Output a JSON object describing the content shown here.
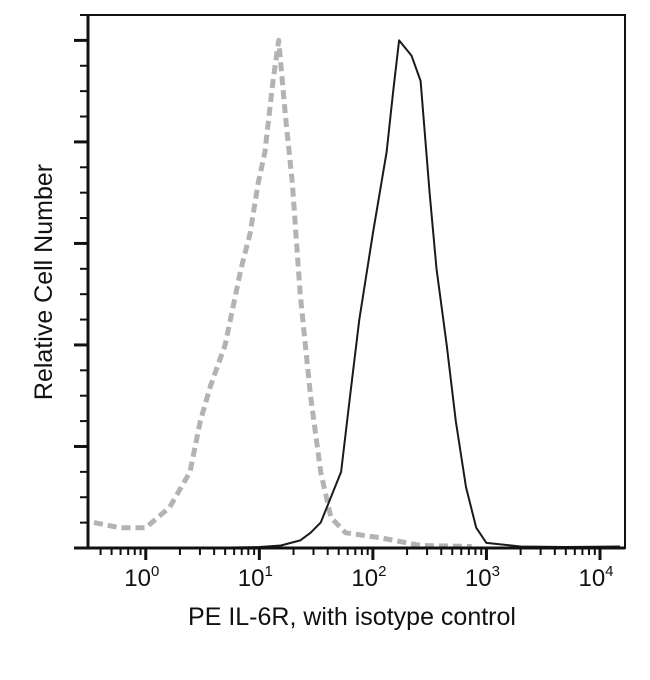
{
  "chart_data": {
    "type": "line",
    "title": "",
    "xlabel": "PE IL-6R, with isotype control",
    "ylabel": "Relative Cell Number",
    "x_scale": "log",
    "xlim": [
      0.31,
      16600
    ],
    "ylim": [
      0,
      105
    ],
    "grid": false,
    "x_ticks": [
      {
        "value": 1,
        "base": "10",
        "exp": "0"
      },
      {
        "value": 10,
        "base": "10",
        "exp": "1"
      },
      {
        "value": 100,
        "base": "10",
        "exp": "2"
      },
      {
        "value": 1000,
        "base": "10",
        "exp": "3"
      },
      {
        "value": 10000,
        "base": "10",
        "exp": "4"
      }
    ],
    "y_major_ticks": [
      0,
      20,
      40,
      60,
      80,
      100
    ],
    "series": [
      {
        "style": "dashed",
        "color": "#b3b3b3",
        "x": [
          0.35,
          0.59,
          1.0,
          1.62,
          2.45,
          3.02,
          3.72,
          5.0,
          6.9,
          8.3,
          9.8,
          11.2,
          13.2,
          14.8,
          17.0,
          19.5,
          22.9,
          28.2,
          34.7,
          42.7,
          57.5,
          117,
          263,
          741
        ],
        "y": [
          5,
          4,
          4,
          8,
          15,
          25,
          32,
          40,
          55,
          62,
          72,
          78,
          92,
          100,
          85,
          72,
          50,
          30,
          15,
          6,
          3,
          2,
          0.5,
          0.3
        ]
      },
      {
        "style": "solid",
        "color": "#1a1a1a",
        "x": [
          0.35,
          3.0,
          10,
          15.5,
          22.9,
          28.2,
          34.7,
          52.5,
          63,
          75.9,
          100,
          132,
          151,
          170,
          219,
          263,
          316,
          363,
          447,
          537,
          661,
          813,
          1000,
          2000,
          5000,
          15000
        ],
        "y": [
          0,
          0,
          0.2,
          0.5,
          1.5,
          3,
          5,
          15,
          30,
          45,
          62,
          78,
          90,
          100,
          97,
          92,
          70,
          55,
          40,
          25,
          12,
          4,
          1,
          0.3,
          0.2,
          0.3
        ]
      }
    ]
  }
}
